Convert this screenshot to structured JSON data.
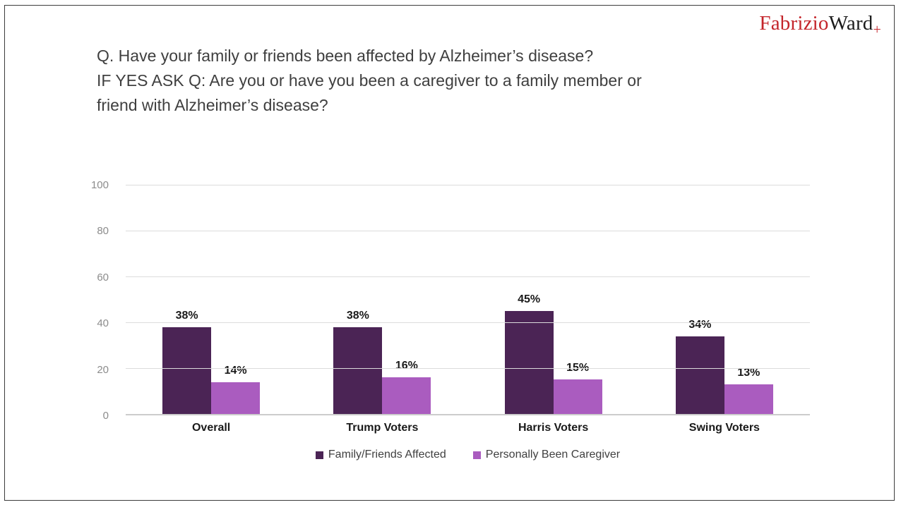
{
  "logo": {
    "part1": "Fabrizio",
    "part2": "Ward",
    "part3": "+"
  },
  "title": {
    "lines": [
      "Q. Have your family or friends been affected by Alzheimer’s disease?",
      "IF YES ASK Q: Are you or have you been a caregiver to a family member or",
      "friend with Alzheimer’s disease?"
    ]
  },
  "chart_data": {
    "type": "bar",
    "categories": [
      "Overall",
      "Trump Voters",
      "Harris Voters",
      "Swing Voters"
    ],
    "series": [
      {
        "name": "Family/Friends Affected",
        "color": "#4b2455",
        "values": [
          38,
          38,
          45,
          34
        ]
      },
      {
        "name": "Personally Been Caregiver",
        "color": "#aa5cbf",
        "values": [
          14,
          16,
          15,
          13
        ]
      }
    ],
    "value_suffix": "%",
    "title": "",
    "xlabel": "",
    "ylabel": "",
    "ylim": [
      0,
      100
    ],
    "yticks": [
      0,
      20,
      40,
      60,
      80,
      100
    ],
    "grid": true,
    "legend_position": "bottom"
  }
}
